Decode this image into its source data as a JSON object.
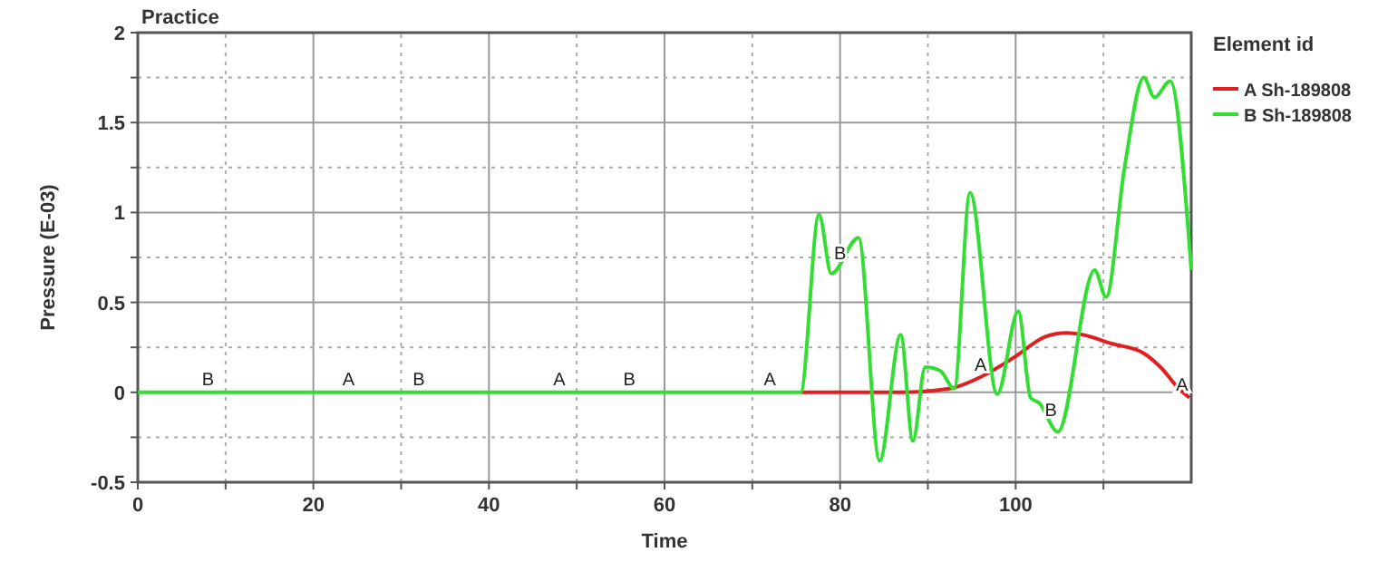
{
  "chart_data": {
    "type": "line",
    "title": "Practice",
    "xlabel": "Time",
    "ylabel": "Pressure (E-03)",
    "legend_title": "Element id",
    "legend": "right",
    "grid": true,
    "line_style": "solid",
    "marker": "none",
    "xlim": [
      0,
      120
    ],
    "ylim": [
      -0.5,
      2
    ],
    "xticks": [
      0,
      {
        "value": 10,
        "label": null
      },
      20,
      {
        "value": 30,
        "label": null
      },
      40,
      {
        "value": 50,
        "label": null
      },
      60,
      {
        "value": 70,
        "label": null
      },
      80,
      {
        "value": 90,
        "label": null
      },
      100,
      {
        "value": 110,
        "label": null
      }
    ],
    "yticks": [
      -0.5,
      {
        "value": -0.25,
        "label": null
      },
      0,
      {
        "value": 0.25,
        "label": null
      },
      0.5,
      {
        "value": 0.75,
        "label": null
      },
      1,
      {
        "value": 1.25,
        "label": null
      },
      1.5,
      {
        "value": 1.75,
        "label": null
      },
      2
    ],
    "series": [
      {
        "name": "A Sh-189808",
        "color": "#e02020",
        "x": [
          75.5,
          87,
          92.4,
          96.2,
          100,
          103.4,
          105.8,
          107.6,
          111,
          114.5,
          116.5,
          118.6,
          119.8
        ],
        "values": [
          0,
          0,
          0.02,
          0.09,
          0.2,
          0.31,
          0.33,
          0.32,
          0.27,
          0.22,
          0.14,
          0.02,
          -0.03
        ]
      },
      {
        "name": "B Sh-189808",
        "color": "#33dd33",
        "x": [
          0,
          75.5,
          77.6,
          79,
          82.1,
          84.5,
          86.9,
          88.3,
          89.7,
          91.4,
          93,
          94.8,
          97.9,
          100.3,
          101.7,
          102.7,
          104.8,
          109,
          110.3,
          112.4,
          114.6,
          115.8,
          117.6,
          120
        ],
        "values": [
          0,
          0,
          0.99,
          0.66,
          0.86,
          -0.38,
          0.32,
          -0.27,
          0.14,
          0.12,
          0.02,
          1.11,
          -0.01,
          0.45,
          -0.03,
          -0.06,
          -0.22,
          0.68,
          0.53,
          1.25,
          1.75,
          1.64,
          1.73,
          0.68
        ]
      }
    ],
    "annotations": [
      {
        "text": "A",
        "x": 24,
        "y": 0
      },
      {
        "text": "A",
        "x": 48,
        "y": 0
      },
      {
        "text": "A",
        "x": 72,
        "y": 0
      },
      {
        "text": "A",
        "x": 96,
        "y": 0.08
      },
      {
        "text": "A",
        "x": 120,
        "y": -0.03
      },
      {
        "text": "B",
        "x": 8,
        "y": 0
      },
      {
        "text": "B",
        "x": 32,
        "y": 0
      },
      {
        "text": "B",
        "x": 56,
        "y": 0
      },
      {
        "text": "B",
        "x": 80,
        "y": 0.7
      },
      {
        "text": "B",
        "x": 104,
        "y": -0.17
      }
    ]
  }
}
